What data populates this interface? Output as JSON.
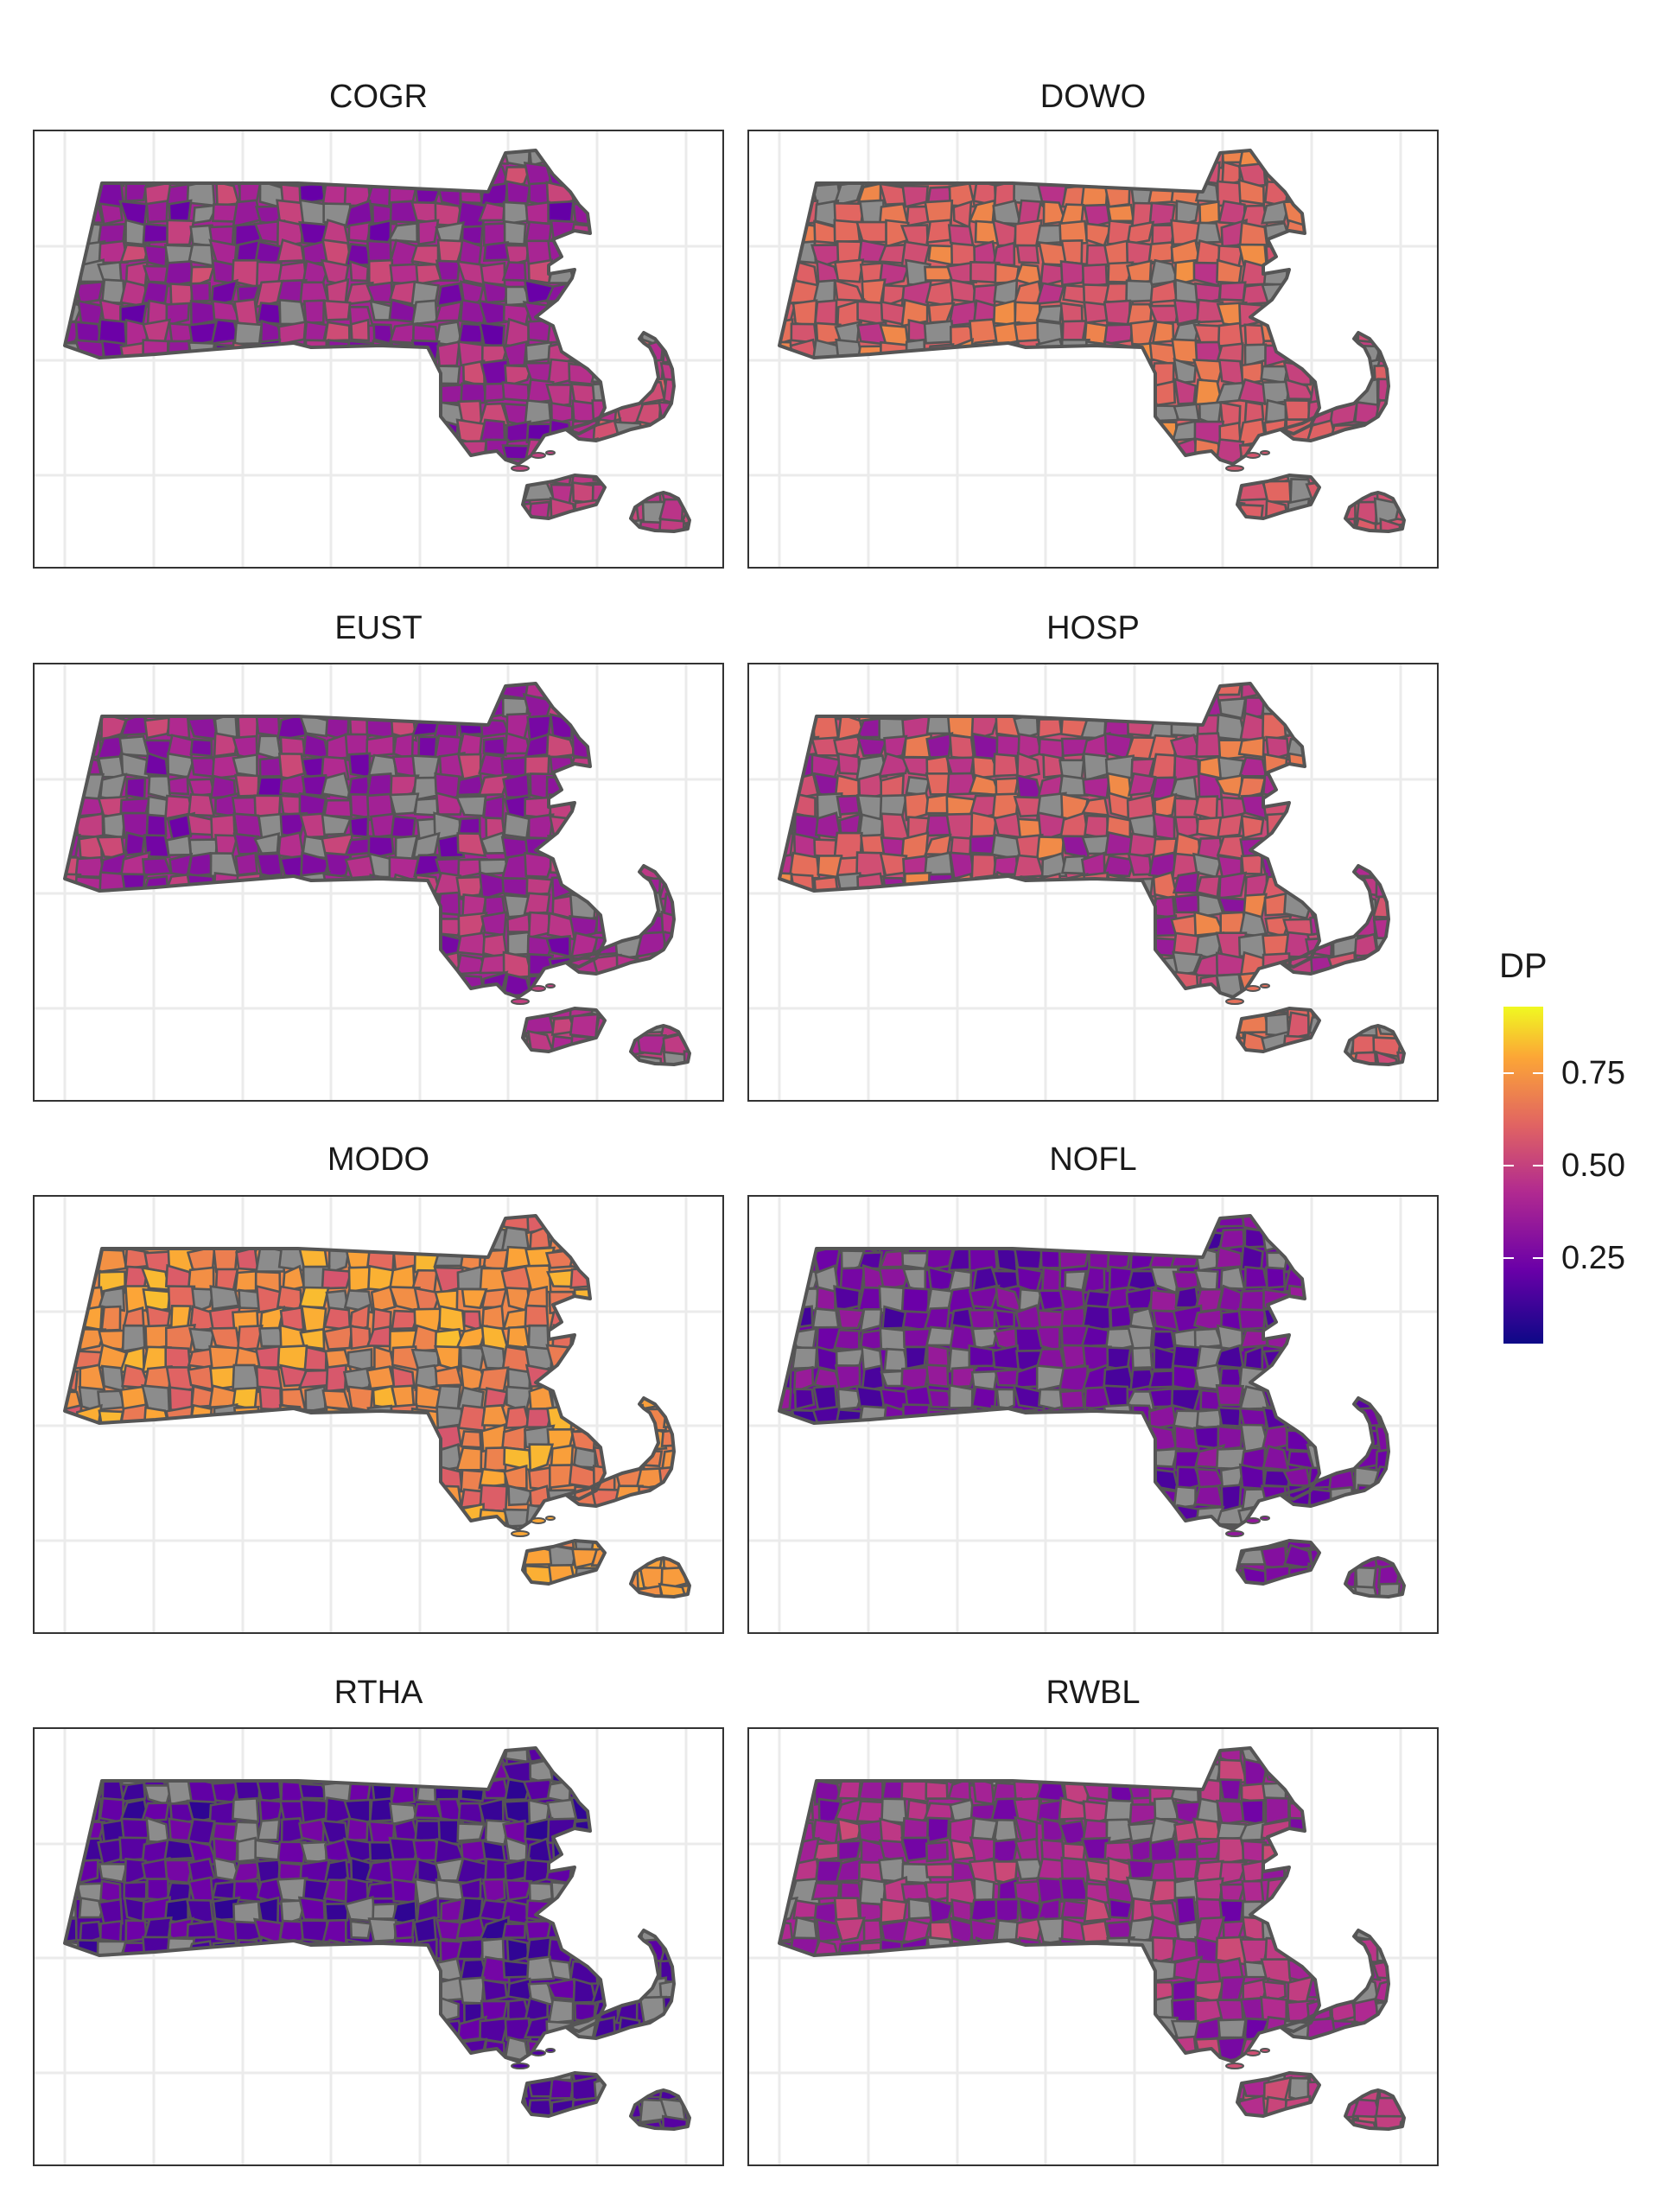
{
  "chart_data": {
    "type": "faceted choropleth map",
    "fill_variable": "DP",
    "facets": [
      {
        "title": "COGR",
        "base_level": 0.35,
        "spread": 0.16,
        "missing_share": 0.2,
        "cape_level": 0.55,
        "islands_level": 0.45
      },
      {
        "title": "DOWO",
        "base_level": 0.55,
        "spread": 0.14,
        "missing_share": 0.16,
        "cape_level": 0.45,
        "islands_level": 0.52
      },
      {
        "title": "EUST",
        "base_level": 0.35,
        "spread": 0.14,
        "missing_share": 0.2,
        "cape_level": 0.38,
        "islands_level": 0.45
      },
      {
        "title": "HOSP",
        "base_level": 0.48,
        "spread": 0.2,
        "missing_share": 0.22,
        "cape_level": 0.42,
        "islands_level": 0.6
      },
      {
        "title": "MODO",
        "base_level": 0.66,
        "spread": 0.14,
        "missing_share": 0.18,
        "cape_level": 0.65,
        "islands_level": 0.75
      },
      {
        "title": "NOFL",
        "base_level": 0.22,
        "spread": 0.1,
        "missing_share": 0.22,
        "cape_level": 0.22,
        "islands_level": 0.3
      },
      {
        "title": "RTHA",
        "base_level": 0.16,
        "spread": 0.08,
        "missing_share": 0.22,
        "cape_level": 0.15,
        "islands_level": 0.15
      },
      {
        "title": "RWBL",
        "base_level": 0.35,
        "spread": 0.14,
        "missing_share": 0.18,
        "cape_level": 0.4,
        "islands_level": 0.5
      }
    ],
    "legend": {
      "title": "DP",
      "range": [
        0.02,
        0.93
      ],
      "breaks": [
        {
          "value": 0.25,
          "label": "0.25"
        },
        {
          "value": 0.5,
          "label": "0.50"
        },
        {
          "value": 0.75,
          "label": "0.75"
        }
      ],
      "palette": [
        "#0d0887",
        "#6a00a8",
        "#b12a90",
        "#e16462",
        "#fca636",
        "#f0f921"
      ],
      "na_color": "#8c8c8c"
    },
    "border_color": "#555555",
    "grid": true,
    "legend_position": "right"
  }
}
